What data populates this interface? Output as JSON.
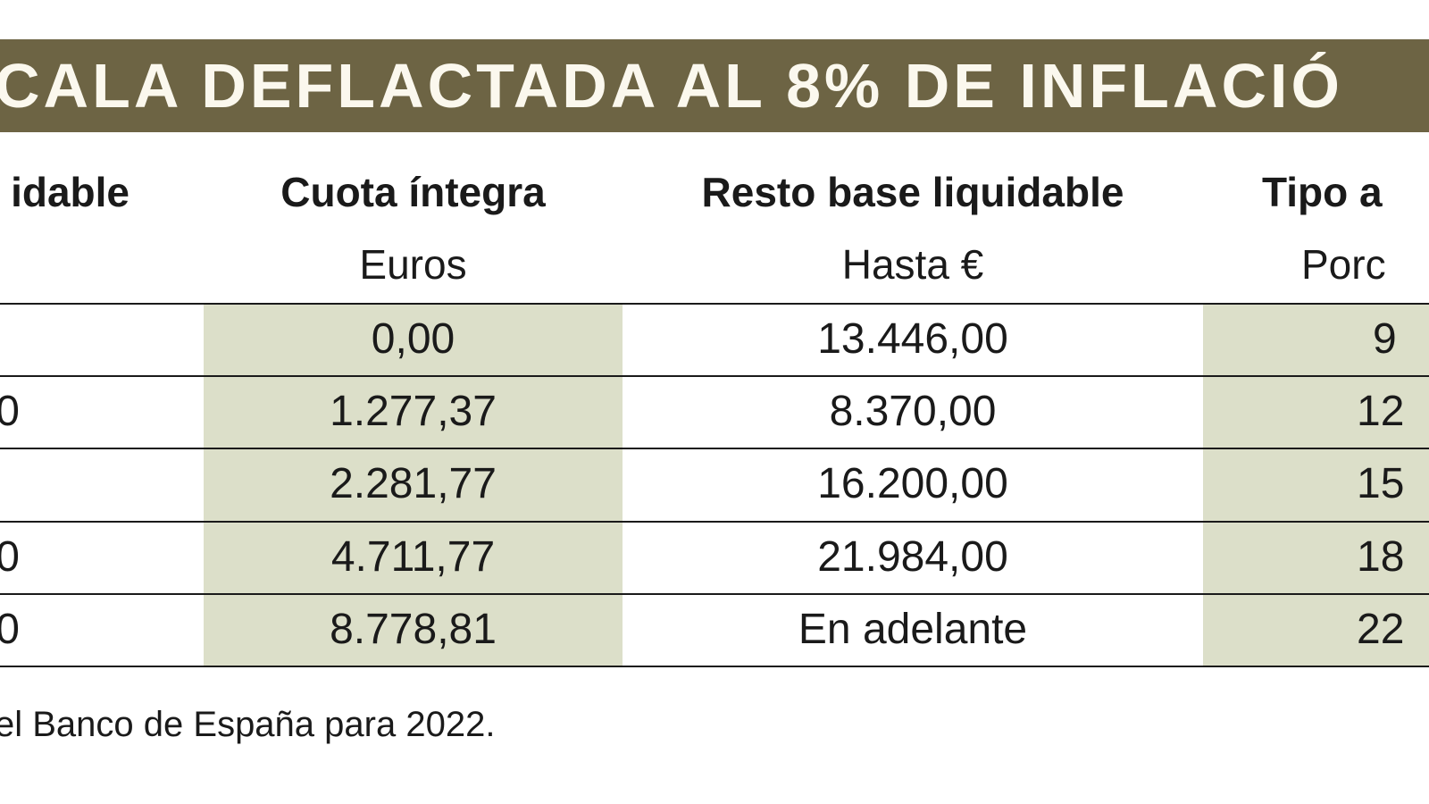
{
  "title": "CALA DEFLACTADA AL 8% DE INFLACIÓ",
  "headers": [
    "idable",
    "Cuota íntegra",
    "Resto base liquidable",
    "Tipo a"
  ],
  "units": [
    "",
    "Euros",
    "Hasta €",
    "Porc"
  ],
  "rows": [
    [
      "",
      "0,00",
      "13.446,00",
      "9"
    ],
    [
      "0",
      "1.277,37",
      "8.370,00",
      "12"
    ],
    [
      "",
      "2.281,77",
      "16.200,00",
      "15"
    ],
    [
      "0",
      "4.711,77",
      "21.984,00",
      "18"
    ],
    [
      "0",
      "8.778,81",
      "En adelante",
      "22"
    ]
  ],
  "footnote": "el Banco de España para 2022.",
  "colors": {
    "banner": "#6d6444",
    "shade": "#dcdfc9",
    "banner_text": "#fbf8ee"
  }
}
